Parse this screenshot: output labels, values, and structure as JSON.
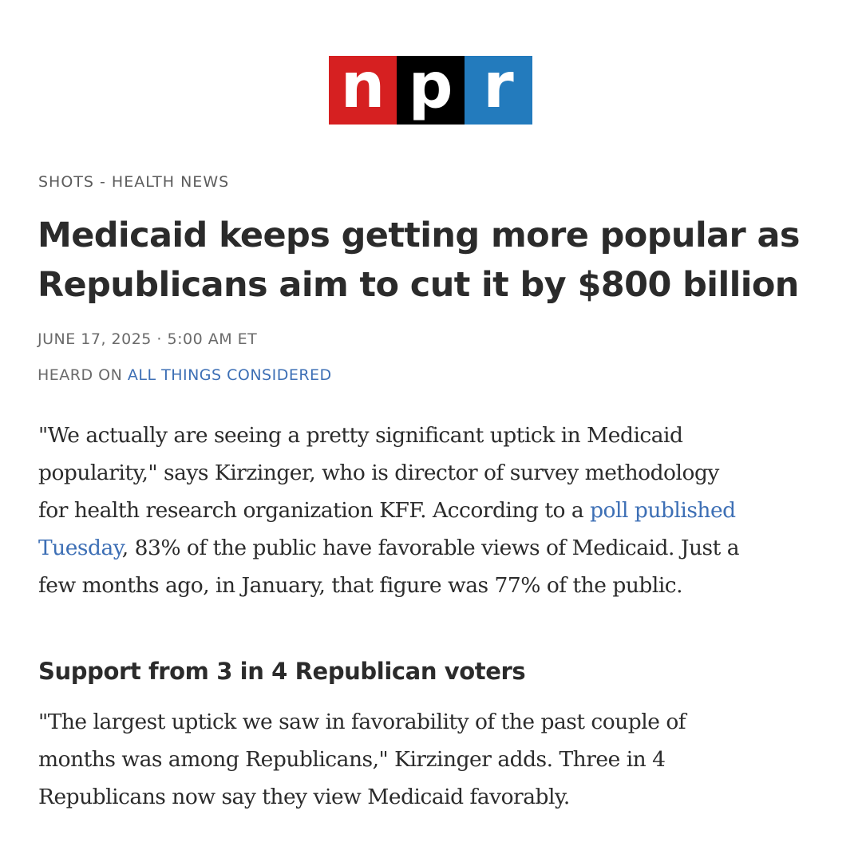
{
  "logo": {
    "letters": [
      "n",
      "p",
      "r"
    ],
    "colors": [
      "#d62021",
      "#000000",
      "#237bbd"
    ]
  },
  "article": {
    "kicker": "SHOTS - HEALTH NEWS",
    "headline_line1": "Medicaid keeps getting more popular as",
    "headline_line2": "Republicans aim to cut it by $800 billion",
    "dateline": "JUNE 17, 2025 · 5:00 AM ET",
    "heard_on_prefix": "HEARD ON ",
    "heard_on_program": "ALL THINGS CONSIDERED",
    "paragraph1": {
      "line1": "\"We actually are seeing a pretty significant uptick in Medicaid",
      "line2": "popularity,\" says Kirzinger, who is director of survey methodology",
      "line3_text": "for health research organization KFF. According to a ",
      "link_part1": "poll published",
      "link_part2": "Tuesday",
      "line4_text": ", 83% of the public have favorable views of Medicaid. Just a",
      "line5": "few months ago, in January, that figure was 77% of the public."
    },
    "subhead": "Support from 3 in 4 Republican voters",
    "paragraph2": {
      "line1": "\"The largest uptick we saw in favorability of the past couple of",
      "line2": "months was among Republicans,\" Kirzinger adds. Three in 4",
      "line3": "Republicans now say they view Medicaid favorably."
    }
  }
}
